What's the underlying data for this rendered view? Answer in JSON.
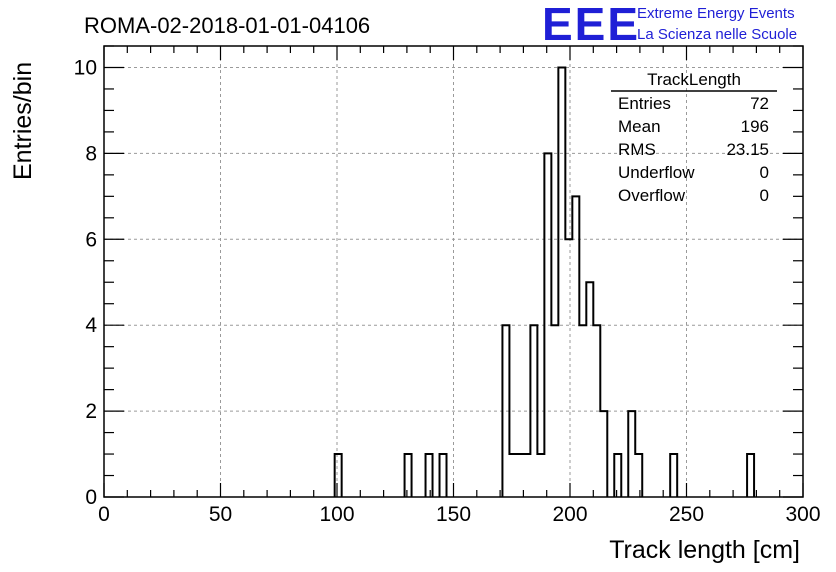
{
  "title": "ROMA-02-2018-01-01-04106",
  "logo": {
    "mark": "EEE",
    "line1": "Extreme Energy Events",
    "line2": "La Scienza nelle Scuole",
    "color": "#1f1fd6"
  },
  "stats": {
    "name": "TrackLength",
    "rows": [
      {
        "label": "Entries",
        "value": "72"
      },
      {
        "label": "Mean",
        "value": "196"
      },
      {
        "label": "RMS",
        "value": "23.15"
      },
      {
        "label": "Underflow",
        "value": "0"
      },
      {
        "label": "Overflow",
        "value": "0"
      }
    ]
  },
  "chart_data": {
    "type": "bar",
    "style": "step-histogram",
    "xlabel": "Track length [cm]",
    "ylabel": "Entries/bin",
    "xlim": [
      0,
      300
    ],
    "ylim": [
      0,
      10.5
    ],
    "xticks": [
      0,
      50,
      100,
      150,
      200,
      250,
      300
    ],
    "yticks": [
      0,
      2,
      4,
      6,
      8,
      10
    ],
    "bin_width": 3,
    "grid": true,
    "bins": [
      {
        "x": 99,
        "count": 1
      },
      {
        "x": 129,
        "count": 1
      },
      {
        "x": 138,
        "count": 1
      },
      {
        "x": 144,
        "count": 1
      },
      {
        "x": 171,
        "count": 4
      },
      {
        "x": 174,
        "count": 1
      },
      {
        "x": 177,
        "count": 1
      },
      {
        "x": 180,
        "count": 1
      },
      {
        "x": 183,
        "count": 4
      },
      {
        "x": 186,
        "count": 1
      },
      {
        "x": 189,
        "count": 8
      },
      {
        "x": 192,
        "count": 4
      },
      {
        "x": 195,
        "count": 10
      },
      {
        "x": 198,
        "count": 6
      },
      {
        "x": 201,
        "count": 7
      },
      {
        "x": 204,
        "count": 4
      },
      {
        "x": 207,
        "count": 5
      },
      {
        "x": 210,
        "count": 4
      },
      {
        "x": 213,
        "count": 2
      },
      {
        "x": 219,
        "count": 1
      },
      {
        "x": 225,
        "count": 2
      },
      {
        "x": 228,
        "count": 1
      },
      {
        "x": 243,
        "count": 1
      },
      {
        "x": 276,
        "count": 1
      }
    ]
  }
}
